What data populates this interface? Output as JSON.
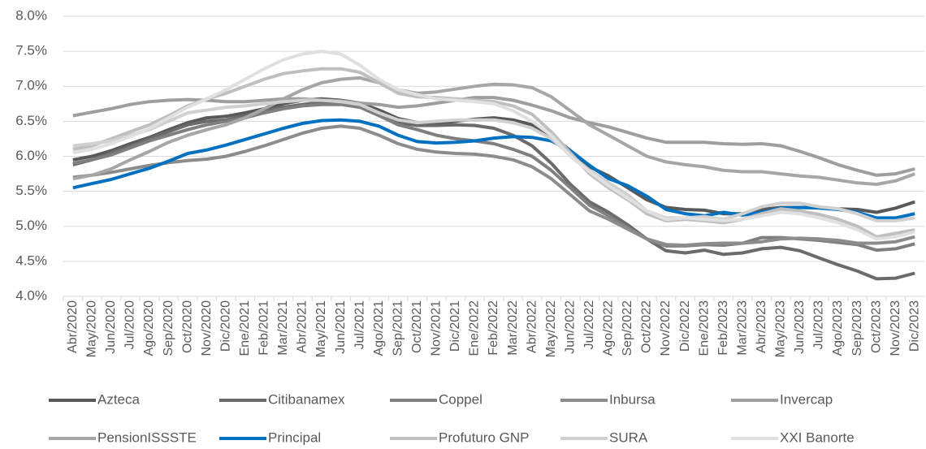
{
  "chart_data": {
    "type": "line",
    "categories": [
      "Abr/2020",
      "May/2020",
      "Jun/2020",
      "Jul/2020",
      "Ago/2020",
      "Sep/2020",
      "Oct/2020",
      "Nov/2020",
      "Dic/2020",
      "Ene/2021",
      "Feb/2021",
      "Mar/2021",
      "Abr/2021",
      "May/2021",
      "Jun/2021",
      "Jul/2021",
      "Ago/2021",
      "Sep/2021",
      "Oct/2021",
      "Nov/2021",
      "Dic/2021",
      "Ene/2022",
      "Feb/2022",
      "Mar/2022",
      "Abr/2022",
      "May/2022",
      "Jun/2022",
      "Jul/2022",
      "Ago/2022",
      "Sep/2022",
      "Oct/2022",
      "Nov/2022",
      "Dic/2022",
      "Ene/2023",
      "Feb/2023",
      "Mar/2023",
      "Abr/2023",
      "May/2023",
      "Jun/2023",
      "Jul/2023",
      "Ago/2023",
      "Sep/2023",
      "Oct/2023",
      "Nov/2023",
      "Dic/2023"
    ],
    "series": [
      {
        "name": "Azteca",
        "color": "#595959",
        "values": [
          5.95,
          6.0,
          6.08,
          6.18,
          6.27,
          6.38,
          6.48,
          6.55,
          6.57,
          6.62,
          6.68,
          6.75,
          6.8,
          6.82,
          6.8,
          6.76,
          6.66,
          6.54,
          6.48,
          6.47,
          6.5,
          6.53,
          6.55,
          6.52,
          6.45,
          6.3,
          6.08,
          5.85,
          5.72,
          5.55,
          5.38,
          5.27,
          5.24,
          5.23,
          5.18,
          5.18,
          5.24,
          5.27,
          5.27,
          5.27,
          5.25,
          5.24,
          5.2,
          5.26,
          5.35
        ]
      },
      {
        "name": "Citibanamex",
        "color": "#6b6b6b",
        "values": [
          5.88,
          5.95,
          6.05,
          6.15,
          6.25,
          6.35,
          6.45,
          6.5,
          6.52,
          6.58,
          6.65,
          6.7,
          6.74,
          6.77,
          6.76,
          6.72,
          6.6,
          6.48,
          6.44,
          6.44,
          6.45,
          6.44,
          6.4,
          6.3,
          6.15,
          5.9,
          5.6,
          5.35,
          5.2,
          5.02,
          4.82,
          4.65,
          4.62,
          4.66,
          4.6,
          4.62,
          4.68,
          4.7,
          4.65,
          4.55,
          4.45,
          4.36,
          4.25,
          4.26,
          4.33
        ]
      },
      {
        "name": "Coppel",
        "color": "#7f7f7f",
        "values": [
          5.9,
          5.95,
          6.02,
          6.12,
          6.22,
          6.3,
          6.38,
          6.45,
          6.5,
          6.55,
          6.62,
          6.68,
          6.72,
          6.74,
          6.74,
          6.7,
          6.58,
          6.45,
          6.38,
          6.3,
          6.25,
          6.22,
          6.18,
          6.1,
          6.0,
          5.8,
          5.55,
          5.3,
          5.15,
          4.98,
          4.82,
          4.72,
          4.72,
          4.74,
          4.73,
          4.76,
          4.84,
          4.84,
          4.82,
          4.8,
          4.77,
          4.74,
          4.66,
          4.68,
          4.75
        ]
      },
      {
        "name": "Inbursa",
        "color": "#8c8c8c",
        "values": [
          5.7,
          5.73,
          5.77,
          5.82,
          5.87,
          5.91,
          5.94,
          5.96,
          6.0,
          6.07,
          6.15,
          6.24,
          6.33,
          6.4,
          6.43,
          6.4,
          6.3,
          6.18,
          6.1,
          6.06,
          6.04,
          6.03,
          6.0,
          5.95,
          5.85,
          5.68,
          5.45,
          5.22,
          5.1,
          4.96,
          4.82,
          4.74,
          4.73,
          4.75,
          4.76,
          4.76,
          4.78,
          4.82,
          4.83,
          4.82,
          4.8,
          4.76,
          4.76,
          4.78,
          4.85
        ]
      },
      {
        "name": "Invercap",
        "color": "#9e9e9e",
        "values": [
          6.58,
          6.63,
          6.68,
          6.74,
          6.78,
          6.8,
          6.81,
          6.8,
          6.78,
          6.78,
          6.8,
          6.82,
          6.82,
          6.8,
          6.79,
          6.76,
          6.74,
          6.7,
          6.72,
          6.76,
          6.8,
          6.84,
          6.84,
          6.8,
          6.73,
          6.65,
          6.55,
          6.48,
          6.42,
          6.34,
          6.26,
          6.2,
          6.2,
          6.2,
          6.18,
          6.17,
          6.18,
          6.15,
          6.07,
          5.98,
          5.88,
          5.8,
          5.73,
          5.75,
          5.82
        ]
      },
      {
        "name": "PensionISSSTE",
        "color": "#a6a6a6",
        "values": [
          5.68,
          5.73,
          5.82,
          5.95,
          6.07,
          6.2,
          6.3,
          6.38,
          6.45,
          6.55,
          6.68,
          6.82,
          6.95,
          7.05,
          7.1,
          7.12,
          7.05,
          6.95,
          6.9,
          6.92,
          6.96,
          7.0,
          7.03,
          7.02,
          6.98,
          6.85,
          6.65,
          6.45,
          6.3,
          6.15,
          6.0,
          5.92,
          5.88,
          5.85,
          5.8,
          5.78,
          5.78,
          5.75,
          5.72,
          5.7,
          5.66,
          5.62,
          5.6,
          5.65,
          5.75
        ]
      },
      {
        "name": "Principal",
        "color": "#0070c0",
        "values": [
          5.55,
          5.61,
          5.67,
          5.75,
          5.83,
          5.93,
          6.04,
          6.09,
          6.16,
          6.24,
          6.32,
          6.4,
          6.47,
          6.51,
          6.52,
          6.5,
          6.43,
          6.3,
          6.21,
          6.19,
          6.2,
          6.22,
          6.26,
          6.28,
          6.27,
          6.22,
          6.08,
          5.87,
          5.68,
          5.58,
          5.43,
          5.24,
          5.18,
          5.15,
          5.2,
          5.16,
          5.2,
          5.26,
          5.27,
          5.26,
          5.24,
          5.2,
          5.12,
          5.12,
          5.18
        ]
      },
      {
        "name": "Profuturo GNP",
        "color": "#bfbfbf",
        "values": [
          6.1,
          6.15,
          6.25,
          6.35,
          6.45,
          6.58,
          6.72,
          6.82,
          6.9,
          7.0,
          7.1,
          7.18,
          7.22,
          7.25,
          7.25,
          7.2,
          7.05,
          6.9,
          6.85,
          6.84,
          6.82,
          6.8,
          6.78,
          6.72,
          6.6,
          6.35,
          6.05,
          5.75,
          5.55,
          5.38,
          5.18,
          5.08,
          5.1,
          5.08,
          5.05,
          5.1,
          5.18,
          5.25,
          5.22,
          5.17,
          5.1,
          5.0,
          4.85,
          4.9,
          4.95
        ]
      },
      {
        "name": "SURA",
        "color": "#d0d0d0",
        "values": [
          6.15,
          6.18,
          6.22,
          6.3,
          6.38,
          6.5,
          6.62,
          6.66,
          6.7,
          6.72,
          6.75,
          6.78,
          6.8,
          6.8,
          6.78,
          6.74,
          6.62,
          6.52,
          6.48,
          6.5,
          6.52,
          6.52,
          6.52,
          6.48,
          6.4,
          6.25,
          6.02,
          5.8,
          5.62,
          5.45,
          5.22,
          5.12,
          5.12,
          5.14,
          5.1,
          5.18,
          5.28,
          5.33,
          5.33,
          5.28,
          5.25,
          5.18,
          5.08,
          5.08,
          5.12
        ]
      },
      {
        "name": "XXI Banorte",
        "color": "#e0e0e0",
        "values": [
          6.05,
          6.1,
          6.18,
          6.28,
          6.4,
          6.55,
          6.7,
          6.82,
          6.95,
          7.1,
          7.25,
          7.38,
          7.46,
          7.5,
          7.46,
          7.3,
          7.1,
          6.95,
          6.88,
          6.82,
          6.8,
          6.78,
          6.75,
          6.65,
          6.5,
          6.3,
          6.0,
          5.78,
          5.58,
          5.4,
          5.22,
          5.1,
          5.12,
          5.1,
          5.08,
          5.1,
          5.15,
          5.2,
          5.18,
          5.12,
          5.05,
          4.95,
          4.82,
          4.85,
          4.92
        ]
      }
    ],
    "ylim": [
      4.0,
      8.0
    ],
    "yticks": [
      {
        "value": 4.0,
        "label": "4.0%"
      },
      {
        "value": 4.5,
        "label": "4.5%"
      },
      {
        "value": 5.0,
        "label": "5.0%"
      },
      {
        "value": 5.5,
        "label": "5.5%"
      },
      {
        "value": 6.0,
        "label": "6.0%"
      },
      {
        "value": 6.5,
        "label": "6.5%"
      },
      {
        "value": 7.0,
        "label": "7.0%"
      },
      {
        "value": 7.5,
        "label": "7.5%"
      },
      {
        "value": 8.0,
        "label": "8.0%"
      }
    ],
    "grid": true,
    "legend": "bottom"
  }
}
